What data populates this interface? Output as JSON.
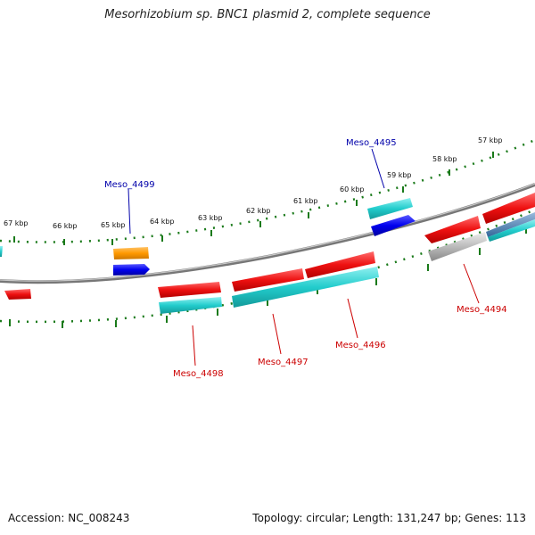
{
  "title": "Mesorhizobium sp. BNC1 plasmid 2, complete sequence",
  "footer": {
    "accession": "Accession: NC_008243",
    "summary": "Topology: circular; Length: 131,247 bp; Genes: 113"
  },
  "colors": {
    "backbone": "#777777",
    "tick": "#1a7a1a",
    "forward_label": "#0000aa",
    "reverse_label": "#cc0000",
    "red_gene": "#ee1111",
    "cyan_gene": "#22cccc",
    "blue_gene": "#0000ee",
    "orange_gene": "#ff9900",
    "gray_gene": "#bbbbbb"
  },
  "kbp_labels": [
    "57 kbp",
    "58 kbp",
    "59 kbp",
    "60 kbp",
    "61 kbp",
    "62 kbp",
    "63 kbp",
    "64 kbp",
    "65 kbp",
    "66 kbp",
    "67 kbp"
  ],
  "gene_labels": {
    "meso_4495": "Meso_4495",
    "meso_4499": "Meso_4499",
    "meso_4494": "Meso_4494",
    "meso_4496": "Meso_4496",
    "meso_4497": "Meso_4497",
    "meso_4498": "Meso_4498"
  }
}
